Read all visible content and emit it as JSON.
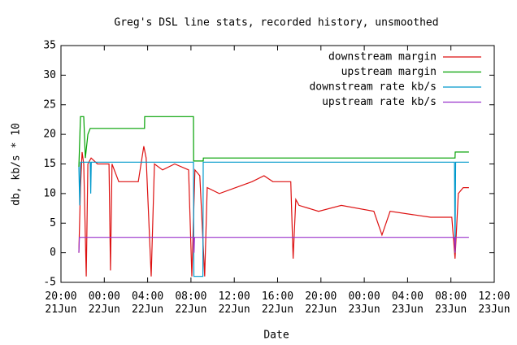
{
  "chart_data": {
    "type": "line",
    "title": "Greg's DSL line stats, recorded history, unsmoothed",
    "x_label": "Date",
    "y_label": "db, kb/s * 10",
    "xlim": [
      "20:00 21Jun",
      "12:00 23Jun"
    ],
    "xticks": [
      "20:00\n21Jun",
      "00:00\n22Jun",
      "04:00\n22Jun",
      "08:00\n22Jun",
      "12:00\n22Jun",
      "16:00\n22Jun",
      "20:00\n22Jun",
      "00:00\n23Jun",
      "04:00\n23Jun",
      "08:00\n23Jun",
      "12:00\n23Jun"
    ],
    "ylim": [
      -5,
      35
    ],
    "yticks": [
      -5,
      0,
      5,
      10,
      15,
      20,
      25,
      30,
      35
    ],
    "grid": false,
    "legend": "upper right",
    "series": [
      {
        "name": "downstream margin",
        "color": "#dd1111",
        "x": [
          "21:39 21Jun",
          "21:48 21Jun",
          "21:57 21Jun",
          "22:06 21Jun",
          "22:20 21Jun",
          "22:29 21Jun",
          "22:47 21Jun",
          "23:22 21Jun",
          "00:26 22Jun",
          "00:34 22Jun",
          "00:43 22Jun",
          "01:20 22Jun",
          "03:08 22Jun",
          "03:39 22Jun",
          "03:52 22Jun",
          "04:20 22Jun",
          "04:38 22Jun",
          "05:23 22Jun",
          "06:30 22Jun",
          "07:47 22Jun",
          "08:05 22Jun",
          "08:22 22Jun",
          "08:49 22Jun",
          "09:16 22Jun",
          "09:30 22Jun",
          "10:37 22Jun",
          "12:08 22Jun",
          "13:38 22Jun",
          "14:45 22Jun",
          "15:34 22Jun",
          "17:13 22Jun",
          "17:26 22Jun",
          "17:41 22Jun",
          "17:59 22Jun",
          "19:47 22Jun",
          "21:53 22Jun",
          "00:53 23Jun",
          "01:38 23Jun",
          "02:23 23Jun",
          "06:08 23Jun",
          "08:05 23Jun",
          "08:23 23Jun",
          "08:41 23Jun",
          "09:08 23Jun",
          "09:40 23Jun"
        ],
        "values": [
          0,
          11,
          17,
          15,
          -4,
          15,
          16,
          15,
          15,
          -3,
          15,
          12,
          12,
          18,
          16,
          -4,
          15,
          14,
          15,
          14,
          -4,
          14,
          13,
          -4,
          11,
          10,
          11,
          12,
          13,
          12,
          12,
          -1,
          9,
          8,
          7,
          8,
          7,
          3,
          7,
          6,
          6,
          -1,
          10,
          11,
          11
        ]
      },
      {
        "name": "upstream margin",
        "color": "#00a000",
        "x": [
          "21:39 21Jun",
          "21:48 21Jun",
          "22:06 21Jun",
          "22:15 21Jun",
          "22:29 21Jun",
          "22:42 21Jun",
          "03:43 22Jun",
          "03:44 22Jun",
          "08:14 22Jun",
          "08:15 22Jun",
          "09:08 22Jun",
          "09:09 22Jun",
          "08:23 23Jun",
          "08:24 23Jun",
          "09:40 23Jun"
        ],
        "values": [
          14.5,
          23,
          23,
          16,
          20,
          21,
          21,
          23,
          23,
          15.5,
          15.5,
          16,
          16,
          17,
          17
        ]
      },
      {
        "name": "downstream rate kb/s",
        "color": "#0099cc",
        "x": [
          "21:39 21Jun",
          "21:44 21Jun",
          "21:48 21Jun",
          "22:42 21Jun",
          "22:45 21Jun",
          "22:48 21Jun",
          "08:14 22Jun",
          "08:16 22Jun",
          "09:06 22Jun",
          "09:08 22Jun",
          "08:20 23Jun",
          "08:23 23Jun",
          "08:26 23Jun",
          "09:40 23Jun"
        ],
        "values": [
          14.5,
          8,
          15.3,
          15.3,
          10,
          15.3,
          15.3,
          -4,
          -4,
          15.3,
          15.3,
          0,
          15.3,
          15.3
        ]
      },
      {
        "name": "upstream rate kb/s",
        "color": "#9933cc",
        "x": [
          "21:39 21Jun",
          "21:42 21Jun",
          "21:46 21Jun",
          "08:14 22Jun",
          "08:17 22Jun",
          "08:20 22Jun",
          "08:20 23Jun",
          "08:23 23Jun",
          "08:26 23Jun",
          "09:40 23Jun"
        ],
        "values": [
          0,
          2.6,
          2.6,
          2.6,
          0,
          2.6,
          2.6,
          0,
          2.6,
          2.6
        ]
      }
    ]
  }
}
